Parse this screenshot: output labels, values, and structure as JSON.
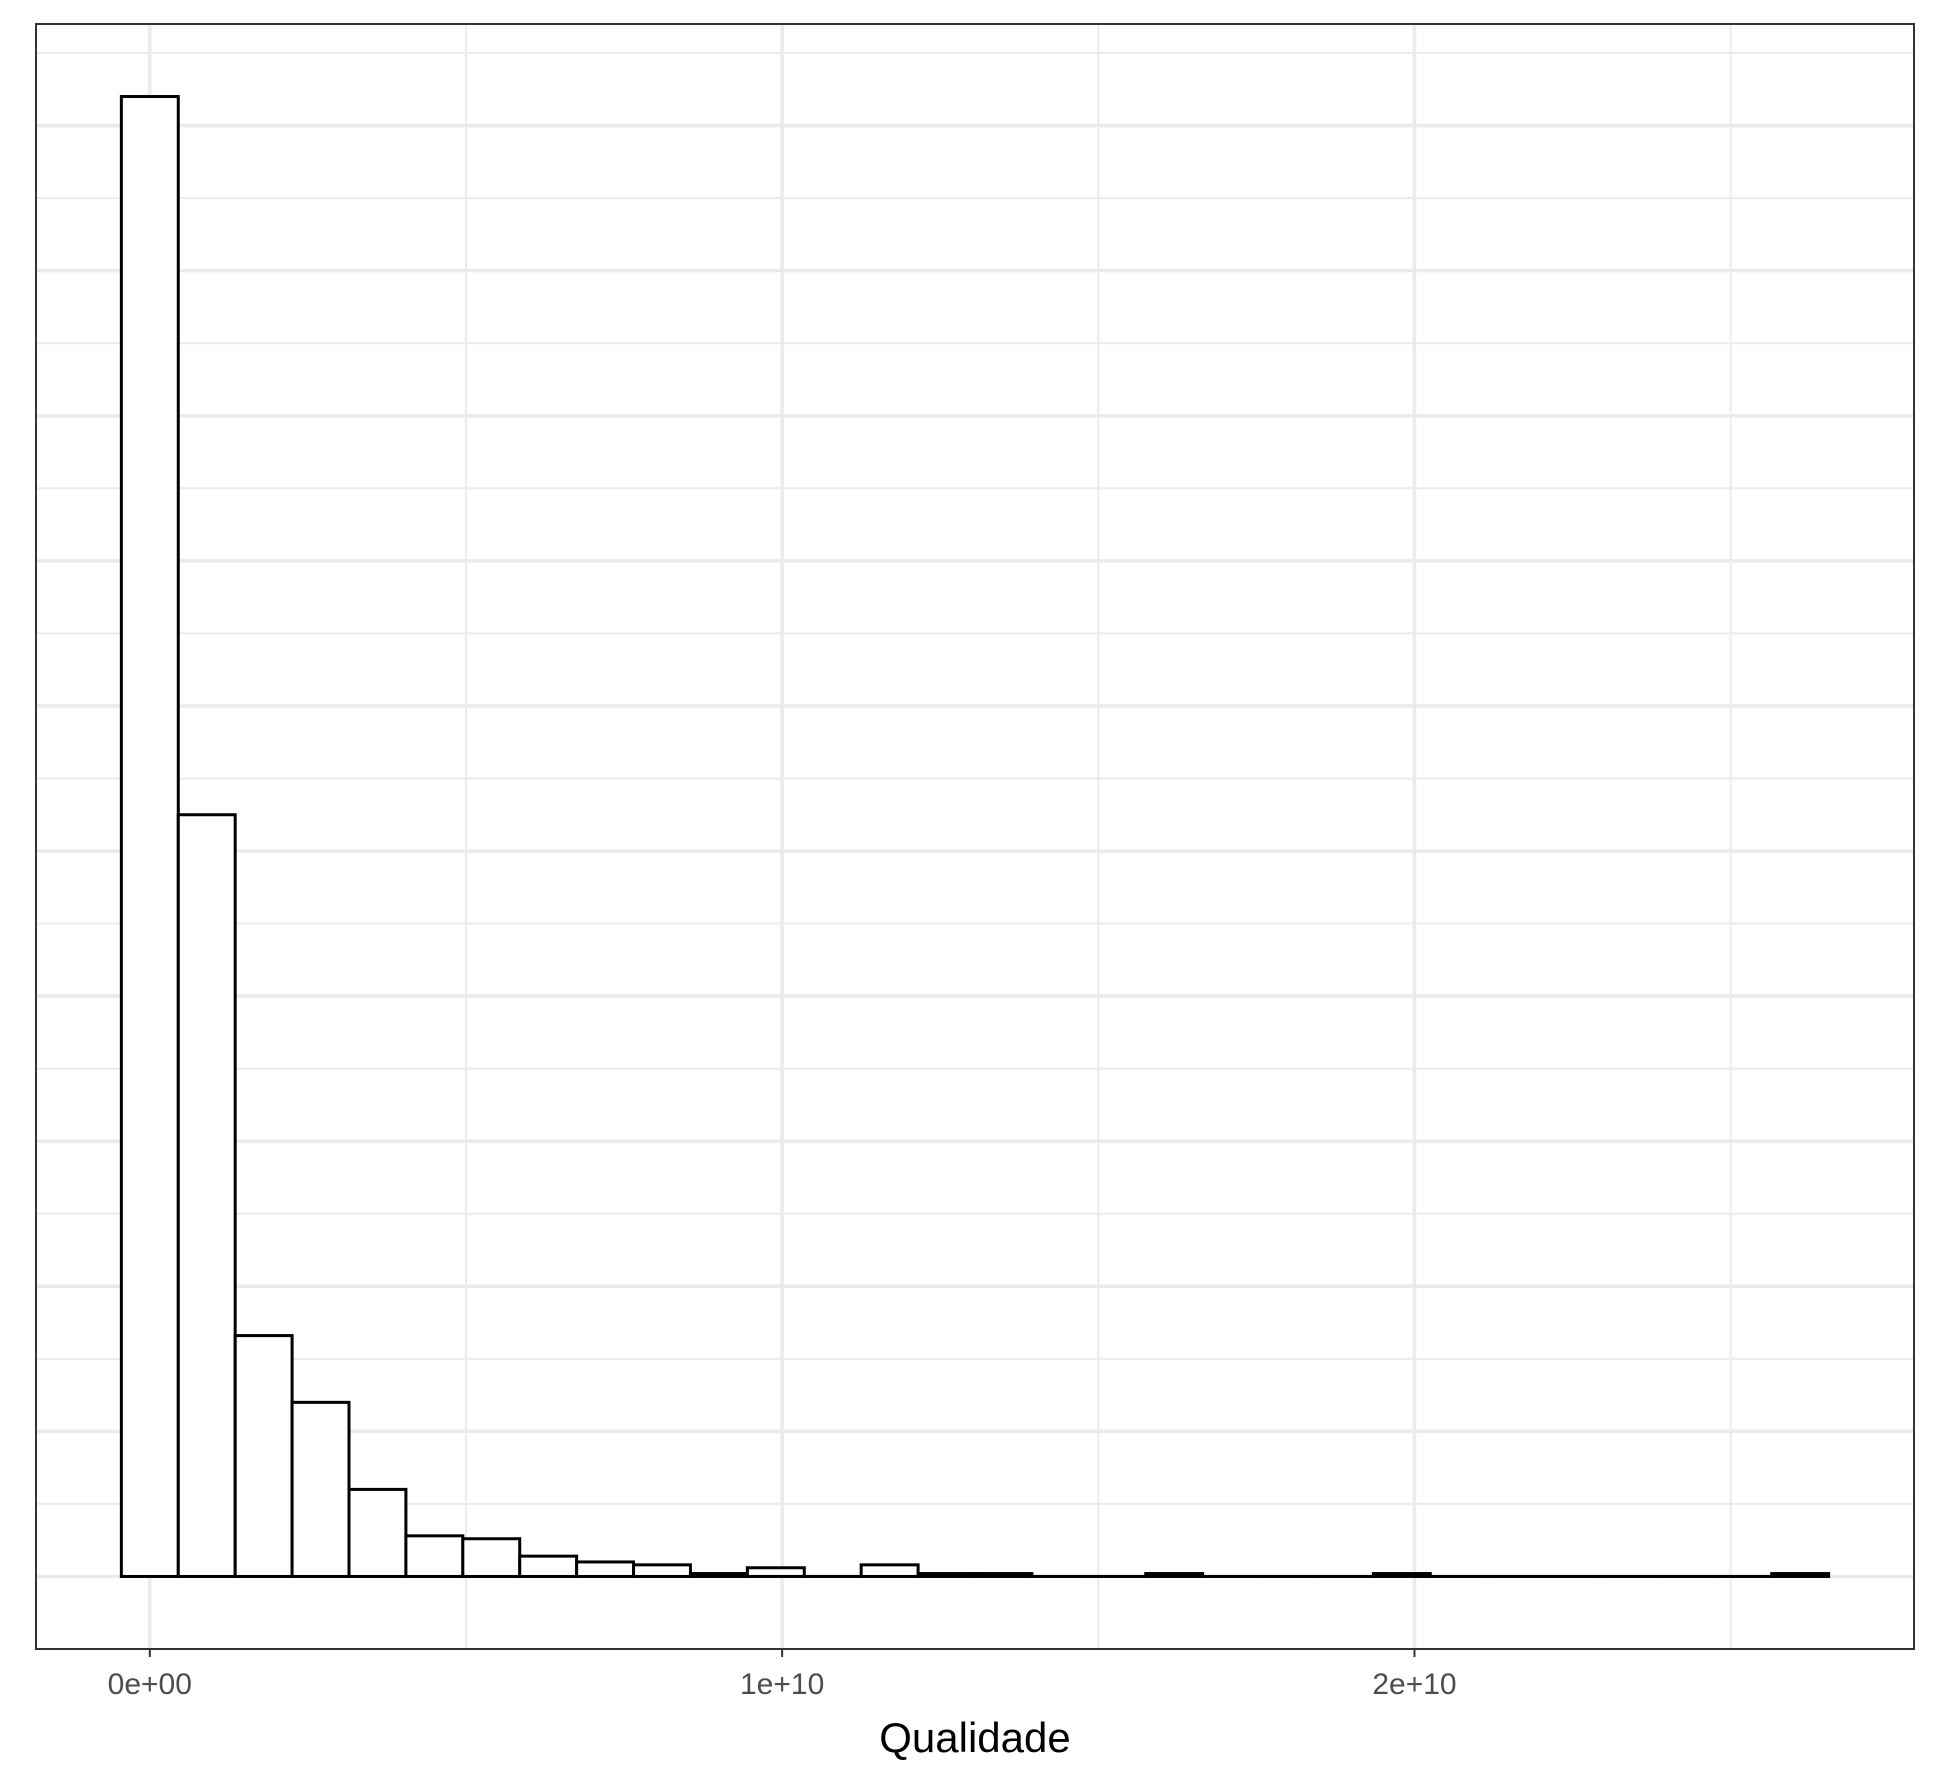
{
  "chart_data": {
    "type": "bar",
    "subtype": "histogram",
    "title": "",
    "xlabel": "Qualidade",
    "ylabel": "",
    "x_ticks": [
      {
        "value": 0,
        "label": "0e+00"
      },
      {
        "value": 10000000000,
        "label": "1e+10"
      },
      {
        "value": 20000000000,
        "label": "2e+10"
      }
    ],
    "y_ticks_shown": false,
    "xlim": [
      -1800000000,
      27900000000
    ],
    "ylim": [
      -0.5,
      10.7
    ],
    "bin_width": 900000000,
    "bins": [
      {
        "x0": -450000000,
        "x1": 450000000,
        "count": 10.2
      },
      {
        "x0": 450000000,
        "x1": 1350000000,
        "count": 5.25
      },
      {
        "x0": 1350000000,
        "x1": 2250000000,
        "count": 1.66
      },
      {
        "x0": 2250000000,
        "x1": 3150000000,
        "count": 1.2
      },
      {
        "x0": 3150000000,
        "x1": 4050000000,
        "count": 0.6
      },
      {
        "x0": 4050000000,
        "x1": 4950000000,
        "count": 0.28
      },
      {
        "x0": 4950000000,
        "x1": 5850000000,
        "count": 0.26
      },
      {
        "x0": 5850000000,
        "x1": 6750000000,
        "count": 0.14
      },
      {
        "x0": 6750000000,
        "x1": 7650000000,
        "count": 0.1
      },
      {
        "x0": 7650000000,
        "x1": 8550000000,
        "count": 0.08
      },
      {
        "x0": 8550000000,
        "x1": 9450000000,
        "count": 0.02
      },
      {
        "x0": 9450000000,
        "x1": 10350000000,
        "count": 0.06
      },
      {
        "x0": 10350000000,
        "x1": 11250000000,
        "count": 0
      },
      {
        "x0": 11250000000,
        "x1": 12150000000,
        "count": 0.08
      },
      {
        "x0": 12150000000,
        "x1": 13050000000,
        "count": 0.02
      },
      {
        "x0": 13050000000,
        "x1": 13950000000,
        "count": 0.02
      },
      {
        "x0": 13950000000,
        "x1": 14850000000,
        "count": 0
      },
      {
        "x0": 14850000000,
        "x1": 15750000000,
        "count": 0
      },
      {
        "x0": 15750000000,
        "x1": 16650000000,
        "count": 0.02
      },
      {
        "x0": 16650000000,
        "x1": 17550000000,
        "count": 0
      },
      {
        "x0": 17550000000,
        "x1": 18450000000,
        "count": 0
      },
      {
        "x0": 18450000000,
        "x1": 19350000000,
        "count": 0
      },
      {
        "x0": 19350000000,
        "x1": 20250000000,
        "count": 0.02
      },
      {
        "x0": 20250000000,
        "x1": 21150000000,
        "count": 0
      },
      {
        "x0": 21150000000,
        "x1": 22050000000,
        "count": 0
      },
      {
        "x0": 22050000000,
        "x1": 22950000000,
        "count": 0
      },
      {
        "x0": 22950000000,
        "x1": 23850000000,
        "count": 0
      },
      {
        "x0": 23850000000,
        "x1": 24750000000,
        "count": 0
      },
      {
        "x0": 24750000000,
        "x1": 25650000000,
        "count": 0
      },
      {
        "x0": 25650000000,
        "x1": 26550000000,
        "count": 0.02
      }
    ],
    "colors": {
      "bar_fill": "#ffffff",
      "bar_stroke": "#000000",
      "panel_border": "#333333",
      "grid": "#ebebeb"
    },
    "grid": true,
    "legend": "none"
  }
}
